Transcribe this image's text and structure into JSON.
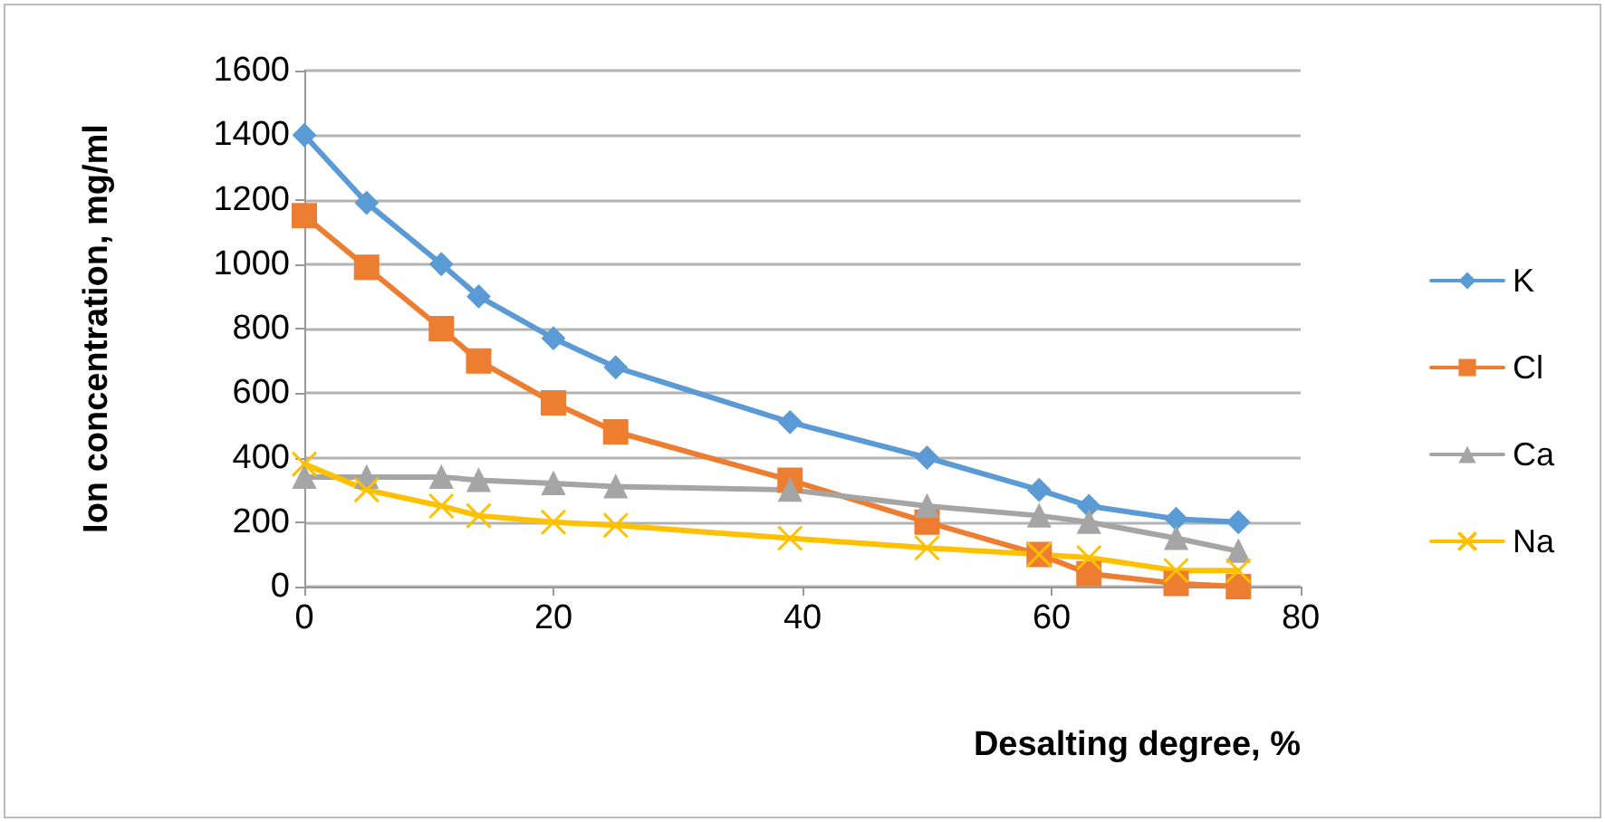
{
  "chart_data": {
    "type": "line",
    "xlabel": "Desalting degree, %",
    "ylabel": "Ion concentration, mg/ml",
    "x": [
      0,
      5,
      11,
      14,
      20,
      25,
      39,
      50,
      59,
      63,
      70,
      75
    ],
    "series": [
      {
        "name": "K",
        "color": "#5b9bd5",
        "marker": "diamond",
        "values": [
          1400,
          1190,
          1000,
          900,
          770,
          680,
          510,
          400,
          300,
          250,
          210,
          200
        ]
      },
      {
        "name": "Cl",
        "color": "#ed7d31",
        "marker": "square",
        "values": [
          1150,
          990,
          800,
          700,
          570,
          480,
          330,
          200,
          100,
          40,
          10,
          0
        ]
      },
      {
        "name": "Ca",
        "color": "#a5a5a5",
        "marker": "triangle",
        "values": [
          340,
          340,
          340,
          330,
          320,
          310,
          300,
          250,
          220,
          200,
          150,
          110
        ]
      },
      {
        "name": "Na",
        "color": "#ffc000",
        "marker": "cross",
        "values": [
          380,
          300,
          250,
          220,
          200,
          190,
          150,
          120,
          100,
          90,
          50,
          50
        ]
      }
    ],
    "xlim": [
      0,
      80
    ],
    "xticks": [
      0,
      20,
      40,
      60,
      80
    ],
    "ylim": [
      0,
      1600
    ],
    "yticks": [
      0,
      200,
      400,
      600,
      800,
      1000,
      1200,
      1400,
      1600
    ],
    "grid": "y",
    "legend": "right"
  }
}
